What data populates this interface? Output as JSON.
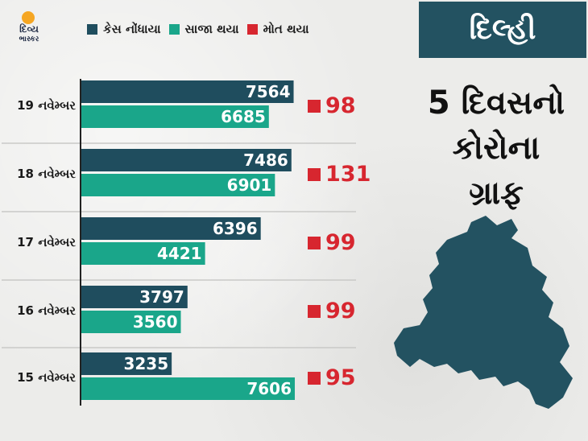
{
  "logo": {
    "line1": "દિવ્ય",
    "line2": "ભાસ્કર"
  },
  "colors": {
    "cases": "#1f4d5e",
    "recovered": "#1aa68a",
    "deaths": "#d7262f",
    "panel": "#235261"
  },
  "legend": [
    {
      "label": "કેસ નોંધાયા",
      "color": "#1f4d5e"
    },
    {
      "label": "સાજા થયા",
      "color": "#1aa68a"
    },
    {
      "label": "મોત થયા",
      "color": "#d7262f"
    }
  ],
  "panel": {
    "city": "દિલ્હી",
    "headline_lines": [
      "5 દિવસનો",
      "કોરોના",
      "ગ્રાફ"
    ],
    "map_icon": "delhi-map-icon"
  },
  "chart_data": {
    "type": "bar",
    "categories": [
      "19 નવેમ્બર",
      "18 નવેમ્બર",
      "17 નવેમ્બર",
      "16 નવેમ્બર",
      "15 નવેમ્બર"
    ],
    "series": [
      {
        "name": "કેસ નોંધાયા",
        "values": [
          7564,
          7486,
          6396,
          3797,
          3235
        ]
      },
      {
        "name": "સાજા થયા",
        "values": [
          6685,
          6901,
          4421,
          3560,
          7606
        ]
      },
      {
        "name": "મોત થયા",
        "values": [
          98,
          131,
          99,
          99,
          95
        ]
      }
    ],
    "orientation": "horizontal",
    "xlim": [
      0,
      7606
    ]
  }
}
